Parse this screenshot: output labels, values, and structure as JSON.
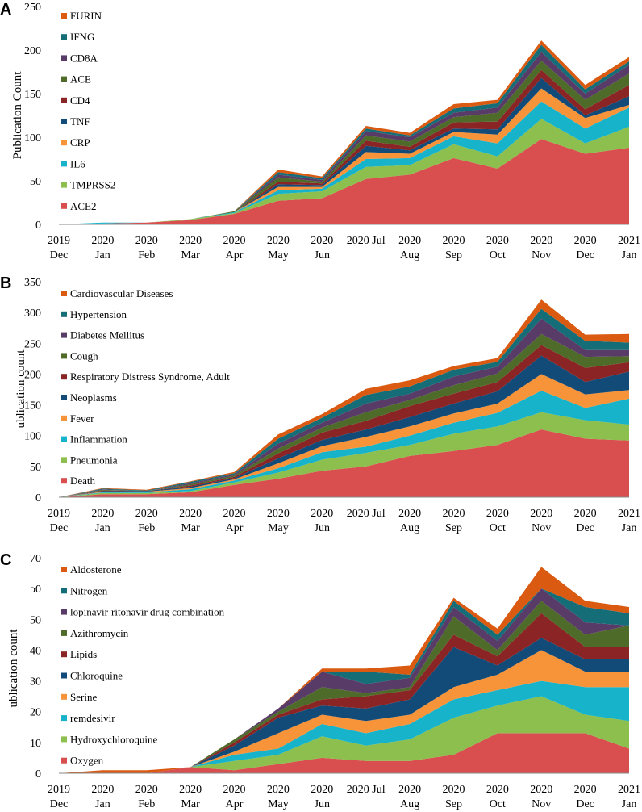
{
  "figure": {
    "x_tick_labels": [
      [
        "2019",
        "Dec"
      ],
      [
        "2020",
        "Jan"
      ],
      [
        "2020",
        "Feb"
      ],
      [
        "2020",
        "Mar"
      ],
      [
        "2020",
        "Apr"
      ],
      [
        "2020",
        "May"
      ],
      [
        "2020",
        "Jun"
      ],
      [
        "2020 Jul"
      ],
      [
        "2020",
        "Aug"
      ],
      [
        "2020",
        "Sep"
      ],
      [
        "2020",
        "Oct"
      ],
      [
        "2020",
        "Nov"
      ],
      [
        "2020",
        "Dec"
      ],
      [
        "2021",
        "Jan"
      ]
    ],
    "colors": [
      "#d94f4f",
      "#8cbf4e",
      "#16b3ca",
      "#f7943a",
      "#124a78",
      "#8b2424",
      "#4f6b2a",
      "#593b67",
      "#156d77",
      "#d95a10"
    ]
  },
  "chart_data": [
    {
      "type": "area",
      "stacked": true,
      "panel": "A",
      "title": "",
      "xlabel": "",
      "ylabel": "Publication Count",
      "ylim": [
        0,
        250
      ],
      "yticks": [
        0,
        50,
        100,
        150,
        200,
        250
      ],
      "legend_position": "top-left",
      "series": [
        {
          "name": "ACE2",
          "values": [
            0,
            1,
            2,
            5,
            12,
            27,
            30,
            52,
            57,
            76,
            64,
            98,
            81,
            88
          ]
        },
        {
          "name": "TMPRSS2",
          "values": [
            0,
            0,
            0,
            1,
            1,
            8,
            8,
            14,
            11,
            16,
            14,
            23,
            12,
            24
          ]
        },
        {
          "name": "IL6",
          "values": [
            0,
            1,
            0,
            0,
            1,
            4,
            3,
            9,
            8,
            9,
            15,
            20,
            17,
            22
          ]
        },
        {
          "name": "CRP",
          "values": [
            0,
            0,
            0,
            0,
            0,
            4,
            2,
            8,
            5,
            5,
            10,
            15,
            12,
            3
          ]
        },
        {
          "name": "TNF",
          "values": [
            0,
            0,
            0,
            0,
            0,
            3,
            2,
            7,
            4,
            4,
            6,
            12,
            3,
            10
          ]
        },
        {
          "name": "CD4",
          "values": [
            0,
            0,
            0,
            0,
            0,
            3,
            2,
            6,
            4,
            7,
            9,
            9,
            7,
            13
          ]
        },
        {
          "name": "ACE",
          "values": [
            0,
            0,
            0,
            0,
            1,
            5,
            2,
            6,
            6,
            6,
            10,
            11,
            11,
            13
          ]
        },
        {
          "name": "CD8A",
          "values": [
            0,
            0,
            0,
            0,
            0,
            3,
            2,
            5,
            5,
            5,
            6,
            10,
            7,
            10
          ]
        },
        {
          "name": "IFNG",
          "values": [
            0,
            0,
            0,
            0,
            0,
            3,
            2,
            3,
            2,
            5,
            5,
            8,
            5,
            4
          ]
        },
        {
          "name": "FURIN",
          "values": [
            0,
            0,
            0,
            0,
            0,
            3,
            2,
            3,
            3,
            5,
            4,
            5,
            5,
            5
          ]
        }
      ]
    },
    {
      "type": "area",
      "stacked": true,
      "panel": "B",
      "title": "",
      "xlabel": "",
      "ylabel": "ublication count",
      "ylim": [
        0,
        350
      ],
      "yticks": [
        0,
        50,
        100,
        150,
        200,
        250,
        300,
        350
      ],
      "legend_position": "top-left",
      "series": [
        {
          "name": "Death",
          "values": [
            0,
            5,
            5,
            8,
            20,
            30,
            43,
            50,
            67,
            75,
            85,
            110,
            95,
            92
          ]
        },
        {
          "name": "Pneumonia",
          "values": [
            0,
            2,
            2,
            2,
            4,
            10,
            18,
            22,
            18,
            28,
            30,
            28,
            30,
            26
          ]
        },
        {
          "name": "Inflammation",
          "values": [
            0,
            1,
            1,
            3,
            3,
            7,
            12,
            10,
            15,
            18,
            22,
            35,
            20,
            42
          ]
        },
        {
          "name": "Fever",
          "values": [
            0,
            1,
            1,
            2,
            2,
            8,
            10,
            16,
            15,
            15,
            15,
            27,
            22,
            14
          ]
        },
        {
          "name": "Neoplasms",
          "values": [
            0,
            1,
            1,
            2,
            2,
            8,
            10,
            12,
            15,
            16,
            20,
            30,
            20,
            30
          ]
        },
        {
          "name": "Respiratory Distress Syndrome, Adult",
          "values": [
            0,
            1,
            0,
            2,
            2,
            8,
            12,
            14,
            18,
            16,
            15,
            17,
            23,
            15
          ]
        },
        {
          "name": "Cough",
          "values": [
            0,
            1,
            0,
            2,
            2,
            8,
            8,
            14,
            10,
            14,
            14,
            18,
            18,
            10
          ]
        },
        {
          "name": "Diabetes Mellitus",
          "values": [
            0,
            1,
            0,
            2,
            2,
            8,
            8,
            14,
            10,
            14,
            11,
            25,
            11,
            10
          ]
        },
        {
          "name": "Hypertension",
          "values": [
            0,
            1,
            1,
            2,
            2,
            8,
            8,
            14,
            12,
            11,
            8,
            16,
            15,
            12
          ]
        },
        {
          "name": "Cardiovascular Diseases",
          "values": [
            0,
            1,
            1,
            1,
            2,
            7,
            6,
            10,
            10,
            6,
            6,
            15,
            10,
            14
          ]
        }
      ]
    },
    {
      "type": "area",
      "stacked": true,
      "panel": "C",
      "title": "",
      "xlabel": "",
      "ylabel": "ublication count",
      "ylim": [
        0,
        70
      ],
      "yticks": [
        0,
        10,
        20,
        30,
        40,
        50,
        60,
        70
      ],
      "ytick_labels": [
        "0",
        "10",
        "20",
        "30",
        "40",
        "50",
        "ͻ0",
        "70"
      ],
      "legend_position": "top-left",
      "series": [
        {
          "name": "Oxygen",
          "values": [
            0,
            0,
            0,
            2,
            1,
            3,
            5,
            4,
            4,
            6,
            13,
            13,
            13,
            8
          ]
        },
        {
          "name": "Hydroxychloroquine",
          "values": [
            0,
            0,
            0,
            0,
            3,
            3,
            7,
            5,
            7,
            12,
            9,
            12,
            6,
            9
          ]
        },
        {
          "name": "remdesivir",
          "values": [
            0,
            0,
            0,
            0,
            2,
            2,
            4,
            4,
            5,
            6,
            5,
            5,
            9,
            11
          ]
        },
        {
          "name": "Serine",
          "values": [
            0,
            0,
            0,
            0,
            1,
            5,
            3,
            4,
            3,
            4,
            5,
            10,
            5,
            5
          ]
        },
        {
          "name": "Chloroquine",
          "values": [
            0,
            0,
            0,
            0,
            2,
            5,
            3,
            4,
            5,
            13,
            3,
            4,
            4,
            4
          ]
        },
        {
          "name": "Lipids",
          "values": [
            0,
            0,
            0,
            0,
            1,
            1,
            2,
            4,
            3,
            4,
            3,
            8,
            4,
            4
          ]
        },
        {
          "name": "Azithromycin",
          "values": [
            0,
            0,
            0,
            0,
            1,
            1,
            4,
            1,
            1,
            6,
            2,
            4,
            4,
            7
          ]
        },
        {
          "name": "lopinavir-ritonavir drug combination",
          "values": [
            0,
            0,
            0,
            0,
            0,
            1,
            5,
            3,
            3,
            3,
            3,
            4,
            4,
            0
          ]
        },
        {
          "name": "Nitrogen",
          "values": [
            0,
            0,
            0,
            0,
            0,
            0,
            0,
            4,
            1,
            2,
            2,
            0,
            5,
            4
          ]
        },
        {
          "name": "Aldosterone",
          "values": [
            0,
            1,
            1,
            0,
            0,
            0,
            1,
            1,
            3,
            1,
            2,
            7,
            2,
            2
          ]
        }
      ]
    }
  ]
}
